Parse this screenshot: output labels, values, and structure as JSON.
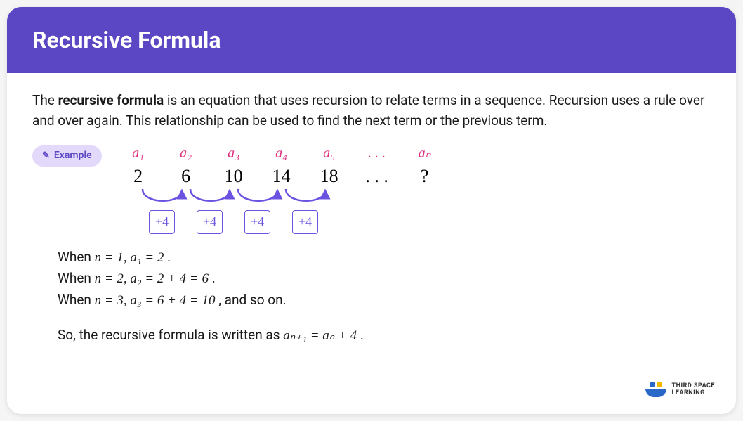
{
  "colors": {
    "header_bg": "#5b46c4",
    "accent": "#6b52e0",
    "term_label": "#e0317e",
    "badge_bg": "#e2d9fb",
    "badge_text": "#5b46c4",
    "step_border": "#6b52e0",
    "step_text": "#6b52e0",
    "dot1": "#2968c8",
    "dot2": "#f5b800",
    "swoosh": "#2968c8"
  },
  "header": {
    "title": "Recursive Formula"
  },
  "intro": {
    "text_before_bold": "The ",
    "bold": "recursive formula",
    "text_after_bold": " is an equation that uses recursion to relate terms in a sequence. Recursion uses a rule over and over again. This relationship can be used to find the next term or the previous term."
  },
  "example_badge": {
    "icon": "✎",
    "label": "Example"
  },
  "sequence": {
    "labels": [
      "a₁",
      "a₂",
      "a₃",
      "a₄",
      "a₅",
      ". . .",
      "aₙ"
    ],
    "values": [
      "2",
      "6",
      "10",
      "14",
      "18",
      ". . .",
      "?"
    ],
    "step": "+4",
    "num_arrows": 4
  },
  "explain_lines": [
    {
      "prefix": "When ",
      "math": "n = 1, a₁ = 2",
      "suffix": " ."
    },
    {
      "prefix": "When ",
      "math": "n = 2, a₂ = 2 + 4 = 6",
      "suffix": " ."
    },
    {
      "prefix": "When ",
      "math": "n = 3, a₃ = 6 + 4 = 10",
      "suffix": " , and so on."
    }
  ],
  "conclusion": {
    "text": "So, the recursive formula is written as ",
    "formula": "aₙ₊₁ = aₙ + 4",
    "suffix": " ."
  },
  "logo": {
    "line1": "THIRD SPACE",
    "line2": "LEARNING"
  }
}
